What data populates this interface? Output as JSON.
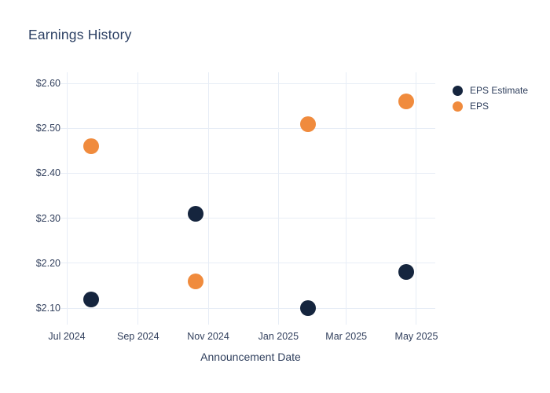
{
  "title": "Earnings History",
  "colors": {
    "background": "#ffffff",
    "grid": "#e7edf6",
    "title_text": "#2d4164",
    "axis_text": "#33415e",
    "eps_estimate": "#15253e",
    "eps": "#f08b3d"
  },
  "chart_data": {
    "type": "scatter",
    "title": "Earnings History",
    "xlabel": "Announcement Date",
    "ylabel": "",
    "grid": true,
    "legend_position": "right",
    "x_unit": "days since 2024-07-01",
    "xlim": [
      -0.7,
      320.4
    ],
    "ylim": [
      2.074,
      2.6245
    ],
    "x_ticks": [
      {
        "value": 0,
        "label": "Jul 2024"
      },
      {
        "value": 62,
        "label": "Sep 2024"
      },
      {
        "value": 123,
        "label": "Nov 2024"
      },
      {
        "value": 184,
        "label": "Jan 2025"
      },
      {
        "value": 243,
        "label": "Mar 2025"
      },
      {
        "value": 304,
        "label": "May 2025"
      }
    ],
    "y_ticks": [
      {
        "value": 2.1,
        "label": "$2.10"
      },
      {
        "value": 2.2,
        "label": "$2.20"
      },
      {
        "value": 2.3,
        "label": "$2.30"
      },
      {
        "value": 2.4,
        "label": "$2.40"
      },
      {
        "value": 2.5,
        "label": "$2.50"
      },
      {
        "value": 2.6,
        "label": "$2.60"
      }
    ],
    "series": [
      {
        "name": "EPS Estimate",
        "color_key": "eps_estimate",
        "points": [
          {
            "x": 21,
            "approx_date": "2024-07-22",
            "value": 2.12,
            "value_label": "$2.12"
          },
          {
            "x": 112,
            "approx_date": "2024-10-21",
            "value": 2.31,
            "value_label": "$2.31"
          },
          {
            "x": 210,
            "approx_date": "2025-01-27",
            "value": 2.1,
            "value_label": "$2.10"
          },
          {
            "x": 295,
            "approx_date": "2025-04-22",
            "value": 2.18,
            "value_label": "$2.18"
          }
        ]
      },
      {
        "name": "EPS",
        "color_key": "eps",
        "points": [
          {
            "x": 21,
            "approx_date": "2024-07-22",
            "value": 2.46,
            "value_label": "$2.46"
          },
          {
            "x": 112,
            "approx_date": "2024-10-21",
            "value": 2.16,
            "value_label": "$2.16"
          },
          {
            "x": 210,
            "approx_date": "2025-01-27",
            "value": 2.51,
            "value_label": "$2.51"
          },
          {
            "x": 295,
            "approx_date": "2025-04-22",
            "value": 2.56,
            "value_label": "$2.56"
          }
        ]
      }
    ]
  }
}
